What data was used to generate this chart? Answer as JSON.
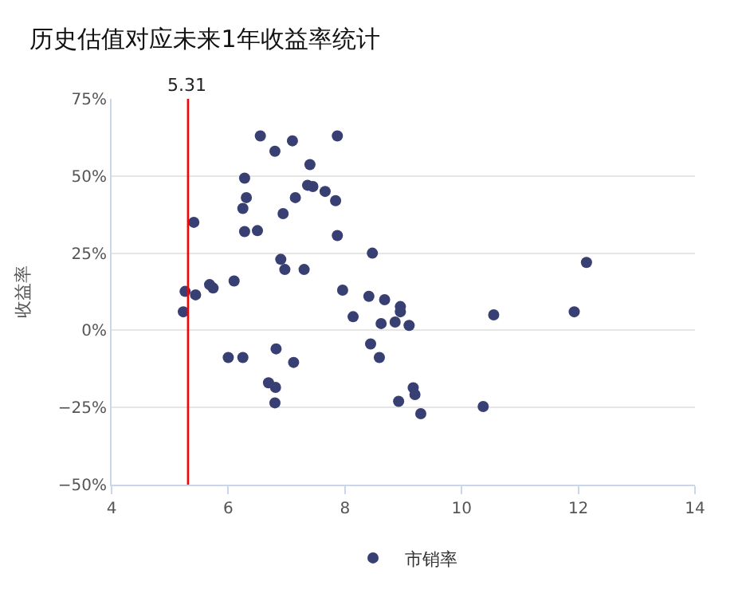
{
  "chart_data": {
    "type": "scatter",
    "title": "历史估值对应未来1年收益率统计",
    "ylabel": "收益率",
    "xlim": [
      4,
      14
    ],
    "xticks": [
      4,
      6,
      8,
      10,
      12,
      14
    ],
    "ylim": [
      -50,
      75
    ],
    "yticks": [
      {
        "value": -50,
        "label": "−50%"
      },
      {
        "value": -25,
        "label": "−25%"
      },
      {
        "value": 0,
        "label": "0%"
      },
      {
        "value": 25,
        "label": "25%"
      },
      {
        "value": 50,
        "label": "50%"
      },
      {
        "value": 75,
        "label": "75%"
      }
    ],
    "grid": "y",
    "legend": "bottom",
    "marker": "circle",
    "ref_lines": [
      {
        "axis": "x",
        "value": 5.31,
        "label": "5.31",
        "color": "#ff0000"
      }
    ],
    "series": [
      {
        "name": "市销率",
        "color": "#383f73",
        "x": [
          5.26,
          5.23,
          5.44,
          5.41,
          5.68,
          5.74,
          6.1,
          6.0,
          6.25,
          6.25,
          6.28,
          6.31,
          6.28,
          6.5,
          6.55,
          6.8,
          6.69,
          6.81,
          6.8,
          6.82,
          6.9,
          6.97,
          6.94,
          7.1,
          7.12,
          7.15,
          7.3,
          7.4,
          7.36,
          7.45,
          7.66,
          7.84,
          7.87,
          7.87,
          7.96,
          8.14,
          8.41,
          8.47,
          8.44,
          8.59,
          8.62,
          8.68,
          8.86,
          8.95,
          8.95,
          8.92,
          9.1,
          9.17,
          9.2,
          9.3,
          10.37,
          10.55,
          11.93,
          12.14
        ],
        "values": [
          12.6,
          6,
          11.5,
          35,
          14.8,
          13.7,
          16,
          -8.8,
          -8.8,
          39.5,
          49.3,
          43,
          32,
          32.3,
          63,
          58,
          -17,
          -18.5,
          -23.5,
          -6,
          23,
          19.7,
          37.8,
          61.4,
          -10.4,
          43,
          19.7,
          53.7,
          47,
          46.6,
          45,
          42,
          63,
          30.7,
          13,
          4.4,
          11,
          25,
          -4.4,
          -8.8,
          2.2,
          9.9,
          2.7,
          7.7,
          6,
          -23,
          1.6,
          -18.6,
          -20.8,
          -27,
          -24.7,
          5,
          6,
          22
        ]
      }
    ]
  }
}
